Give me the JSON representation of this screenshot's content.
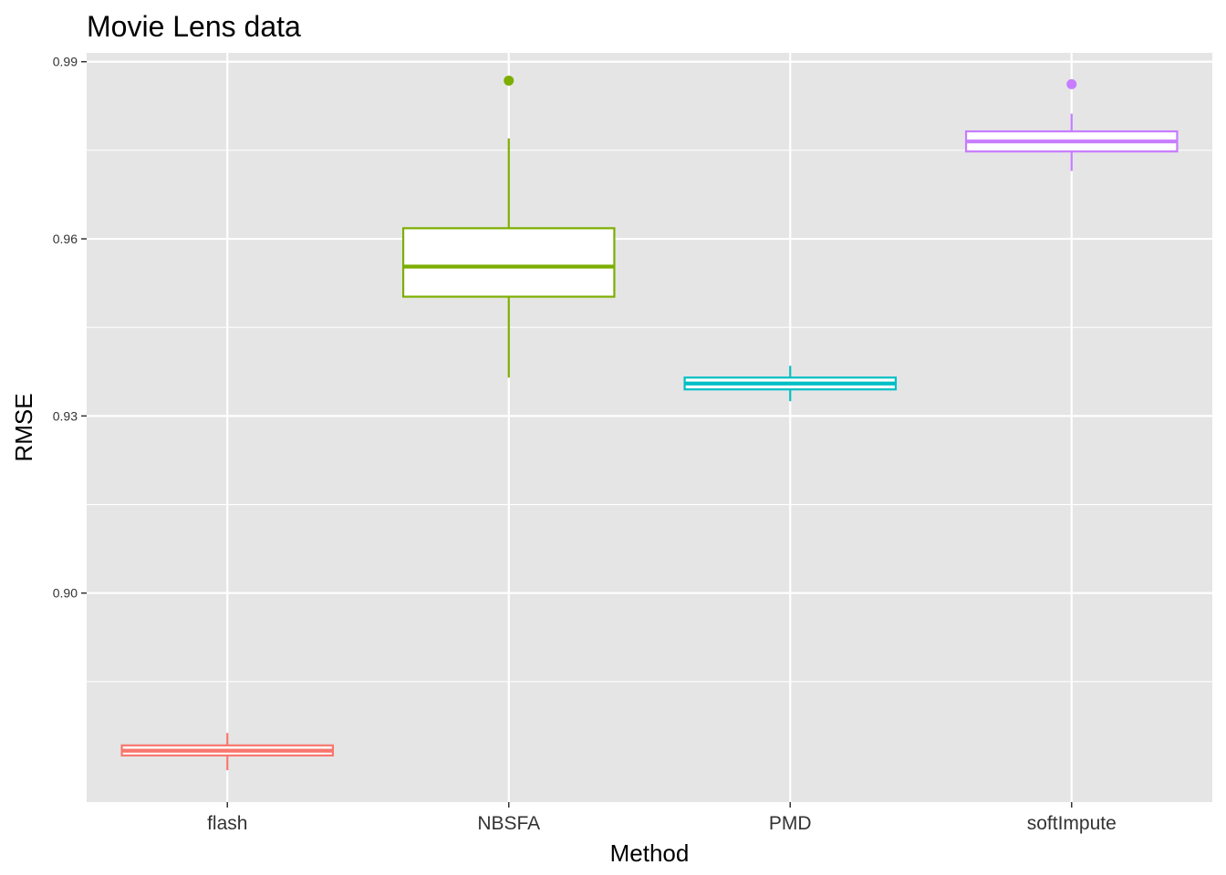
{
  "chart_data": {
    "type": "box",
    "title": "Movie Lens data",
    "xlabel": "Method",
    "ylabel": "RMSE",
    "ylim": [
      0.8646,
      0.9915
    ],
    "y_ticks": [
      0.9,
      0.93,
      0.96,
      0.99
    ],
    "y_tick_labels": [
      "0.90",
      "0.93",
      "0.96",
      "0.99"
    ],
    "y_minor_ticks": [
      0.885,
      0.915,
      0.945,
      0.975
    ],
    "grid": true,
    "legend": "none",
    "categories": [
      "flash",
      "NBSFA",
      "PMD",
      "softImpute"
    ],
    "boxes": [
      {
        "category": "flash",
        "color": "#F8766D",
        "whisker_low": 0.87,
        "q1": 0.8725,
        "median": 0.8733,
        "q3": 0.8742,
        "whisker_high": 0.8763,
        "outliers": []
      },
      {
        "category": "NBSFA",
        "color": "#7CAE00",
        "whisker_low": 0.9365,
        "q1": 0.9502,
        "median": 0.9553,
        "q3": 0.9618,
        "whisker_high": 0.977,
        "outliers": [
          0.9868
        ]
      },
      {
        "category": "PMD",
        "color": "#00BFC4",
        "whisker_low": 0.9325,
        "q1": 0.9345,
        "median": 0.9355,
        "q3": 0.9365,
        "whisker_high": 0.9385,
        "outliers": []
      },
      {
        "category": "softImpute",
        "color": "#C77CFF",
        "whisker_low": 0.9715,
        "q1": 0.9748,
        "median": 0.9765,
        "q3": 0.9782,
        "whisker_high": 0.9812,
        "outliers": [
          0.9862
        ]
      }
    ]
  }
}
